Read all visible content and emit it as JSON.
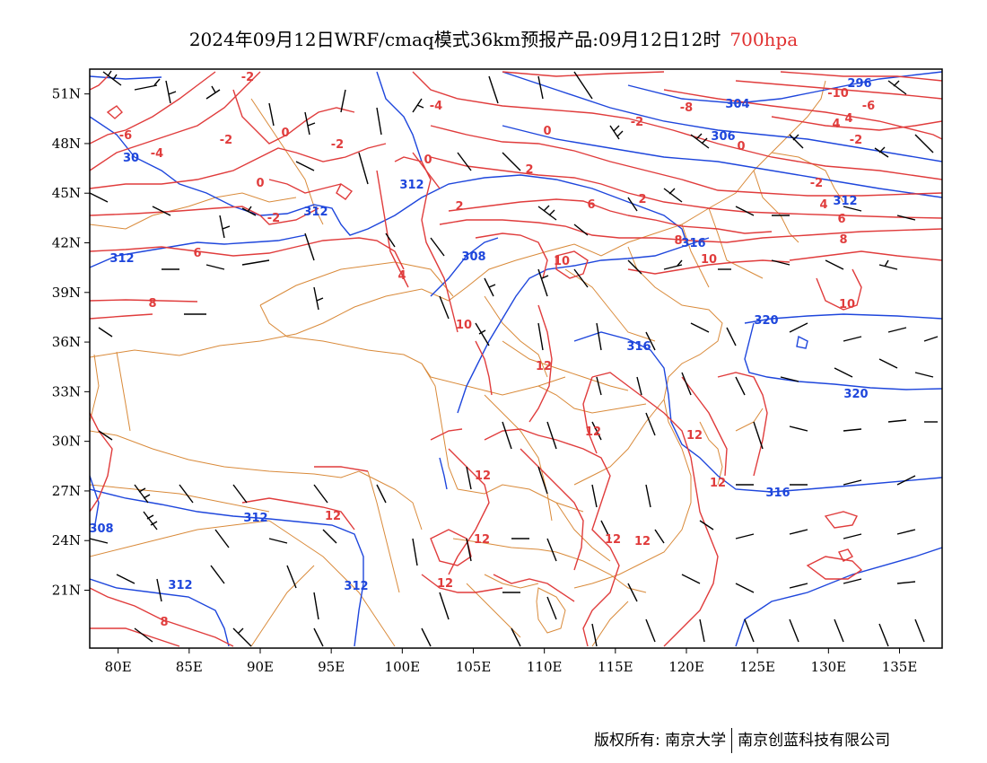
{
  "title": {
    "main": "2024年09月12日WRF/cmaq模式36km预报产品:09月12日12时",
    "level": "700hpa"
  },
  "colors": {
    "temperature": "#e03c3c",
    "geopotential": "#1e46dc",
    "wind": "#000000",
    "border": "#d98a3a",
    "frame": "#000000"
  },
  "map": {
    "lon_range": [
      78,
      138
    ],
    "lat_range": [
      17.5,
      52.5
    ],
    "x_ticks": [
      "80E",
      "85E",
      "90E",
      "95E",
      "100E",
      "105E",
      "110E",
      "115E",
      "120E",
      "125E",
      "130E",
      "135E"
    ],
    "y_ticks": [
      "51N",
      "48N",
      "45N",
      "42N",
      "39N",
      "36N",
      "33N",
      "30N",
      "27N",
      "24N",
      "21N"
    ],
    "temperature_labels": [
      "-2",
      "-6",
      "-4",
      "-2",
      "0",
      "-2",
      "0",
      "-2",
      "0",
      "2",
      "4",
      "2",
      "6",
      "6",
      "8",
      "10",
      "10",
      "10",
      "12",
      "12",
      "12",
      "12",
      "12",
      "12",
      "12",
      "12",
      "12",
      "12",
      "-8",
      "-2",
      "0",
      "2",
      "4",
      "6",
      "8",
      "-10",
      "-6",
      "4",
      "-2",
      "-2",
      "4",
      "6",
      "8",
      "10",
      "8",
      "0",
      "-4"
    ],
    "height_labels": [
      "30",
      "312",
      "312",
      "312",
      "308",
      "316",
      "316",
      "320",
      "320",
      "304",
      "306",
      "296",
      "312",
      "312",
      "312",
      "308",
      "316",
      "312"
    ]
  },
  "footer": {
    "left": "版权所有: 南京大学",
    "right": "南京创蓝科技有限公司"
  }
}
